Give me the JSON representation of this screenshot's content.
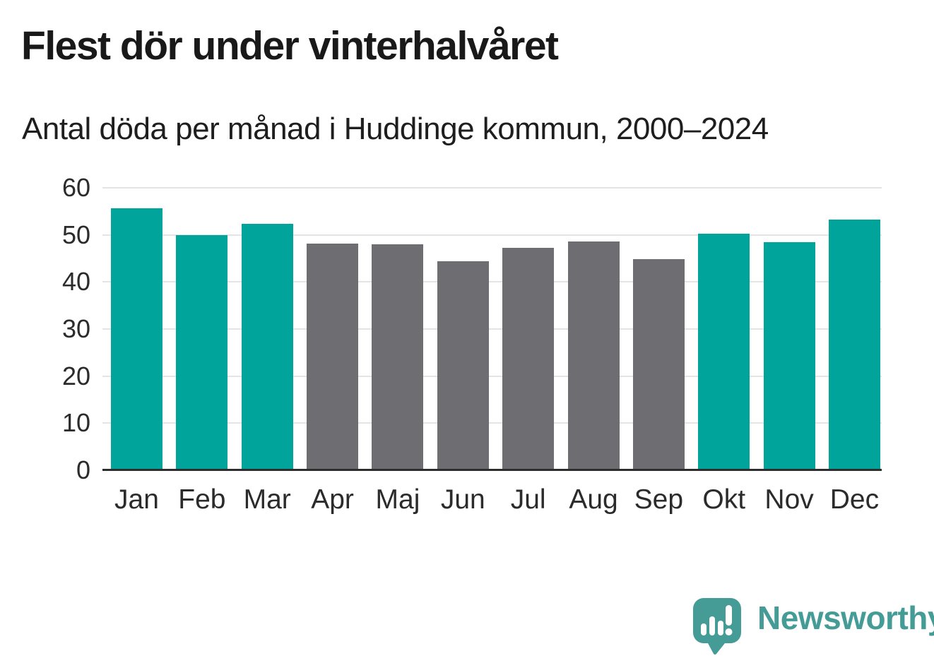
{
  "chart": {
    "title": "Flest dör under vinterhalvåret",
    "subtitle": "Antal döda per månad i Huddinge kommun, 2000–2024"
  },
  "branding": {
    "logo_text": "Newsworthy",
    "logo_icon": "bar-chart-speech-bubble-icon"
  },
  "colors": {
    "winter_bar": "#00a49b",
    "summer_bar": "#6e6d72",
    "gridline": "#e4e4e4",
    "axis_line": "#2d2d2d",
    "title_text": "#191919",
    "axis_text": "#2b2b2b",
    "logo_teal": "#459c96"
  },
  "chart_data": {
    "type": "bar",
    "title": "Flest dör under vinterhalvåret",
    "subtitle": "Antal döda per månad i Huddinge kommun, 2000–2024",
    "categories": [
      "Jan",
      "Feb",
      "Mar",
      "Apr",
      "Maj",
      "Jun",
      "Jul",
      "Aug",
      "Sep",
      "Okt",
      "Nov",
      "Dec"
    ],
    "values": [
      55.7,
      50.0,
      52.4,
      48.1,
      48.0,
      44.4,
      47.2,
      48.6,
      44.8,
      50.2,
      48.4,
      53.2
    ],
    "highlighted_winter_months": [
      true,
      true,
      true,
      false,
      false,
      false,
      false,
      false,
      false,
      true,
      true,
      true
    ],
    "xlabel": "",
    "ylabel": "",
    "ylim": [
      0,
      60
    ],
    "yticks": [
      0,
      10,
      20,
      30,
      40,
      50,
      60
    ],
    "grid": "horizontal",
    "legend": "none"
  }
}
